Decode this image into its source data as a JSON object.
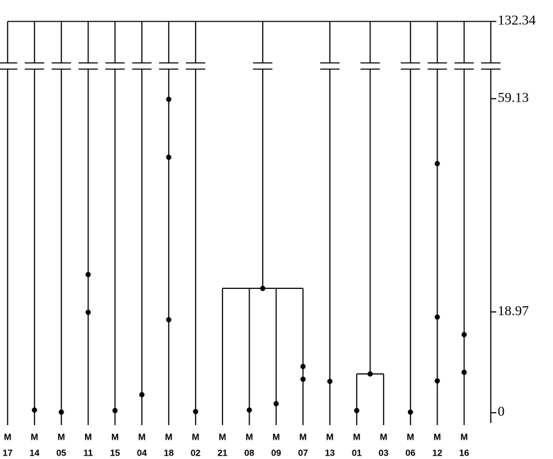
{
  "chart_data": {
    "type": "dendrogram",
    "ylim": [
      0,
      132.34
    ],
    "yticks": [
      0,
      18.97,
      59.13,
      132.34
    ],
    "axis_break": [
      60,
      130
    ],
    "tree": {
      "height": 132.34,
      "children": [
        {
          "name": "M",
          "id": "17",
          "events": []
        },
        {
          "name": "M",
          "id": "14",
          "events": [
            0.5
          ]
        },
        {
          "name": "M",
          "id": "05",
          "events": [
            0.1
          ]
        },
        {
          "name": "M",
          "id": "11",
          "events": [
            26.0,
            18.9
          ]
        },
        {
          "name": "M",
          "id": "15",
          "events": [
            0.4
          ]
        },
        {
          "name": "M",
          "id": "04",
          "events": [
            3.4
          ]
        },
        {
          "name": "M",
          "id": "18",
          "events": [
            59.0,
            48.1,
            17.5
          ]
        },
        {
          "name": "M",
          "id": "02",
          "events": [
            0.2
          ]
        },
        {
          "height": 23.4,
          "events": [
            23.4
          ],
          "children": [
            {
              "name": "M",
              "id": "21",
              "events": []
            },
            {
              "name": "M",
              "id": "08",
              "events": [
                0.5
              ]
            },
            {
              "name": "M",
              "id": "09",
              "events": [
                1.7
              ]
            },
            {
              "name": "M",
              "id": "07",
              "events": [
                8.7,
                6.3
              ]
            }
          ]
        },
        {
          "name": "M",
          "id": "13",
          "events": [
            5.9
          ]
        },
        {
          "height": 7.3,
          "events": [
            7.3
          ],
          "children": [
            {
              "name": "M",
              "id": "01",
              "events": [
                0.4
              ]
            },
            {
              "name": "M",
              "id": "03",
              "events": []
            }
          ]
        },
        {
          "name": "M",
          "id": "06",
          "events": [
            0.1
          ]
        },
        {
          "name": "M",
          "id": "12",
          "events": [
            46.9,
            18.0,
            6.0
          ]
        },
        {
          "name": "M",
          "id": "16",
          "events": [
            14.7,
            7.6
          ]
        }
      ]
    }
  }
}
